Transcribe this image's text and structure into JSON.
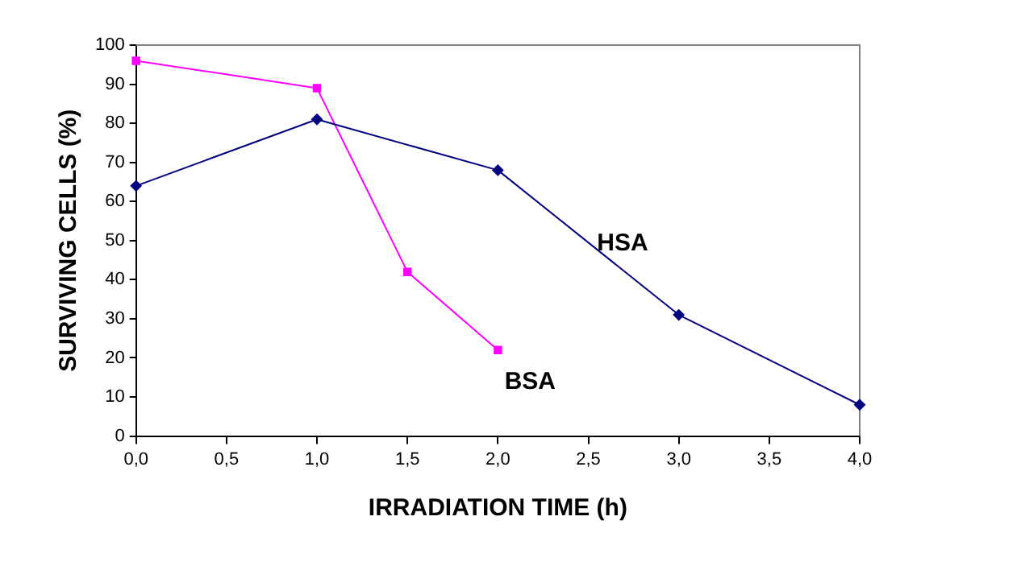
{
  "chart_data": {
    "type": "line",
    "xlabel": "IRRADIATION TIME (h)",
    "ylabel": "SURVIVING CELLS (%)",
    "series": [
      {
        "name": "HSA",
        "color": "#000080",
        "marker": "diamond",
        "x": [
          0,
          1,
          2,
          3,
          4
        ],
        "values": [
          64,
          81,
          68,
          31,
          8
        ]
      },
      {
        "name": "BSA",
        "color": "#ff00ff",
        "marker": "square",
        "x": [
          0,
          1,
          1.5,
          2
        ],
        "values": [
          96,
          89,
          42,
          22
        ]
      }
    ],
    "xlim": [
      0,
      4
    ],
    "xticks": [
      {
        "value": 0,
        "label": "0,0"
      },
      {
        "value": 0.5,
        "label": "0,5"
      },
      {
        "value": 1,
        "label": "1,0"
      },
      {
        "value": 1.5,
        "label": "1,5"
      },
      {
        "value": 2,
        "label": "2,0"
      },
      {
        "value": 2.5,
        "label": "2,5"
      },
      {
        "value": 3,
        "label": "3,0"
      },
      {
        "value": 3.5,
        "label": "3,5"
      },
      {
        "value": 4,
        "label": "4,0"
      }
    ],
    "ylim": [
      0,
      100
    ],
    "yticks": [
      0,
      10,
      20,
      30,
      40,
      50,
      60,
      70,
      80,
      90,
      100
    ],
    "grid": false,
    "legend": false
  }
}
